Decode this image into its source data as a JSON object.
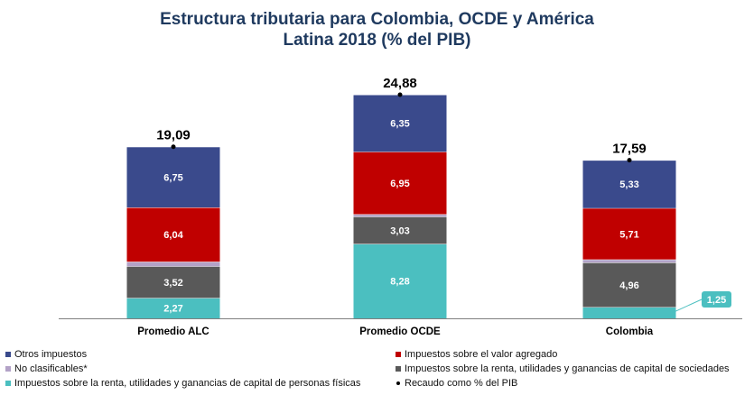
{
  "title_line1": "Estructura tributaria para Colombia, OCDE y América",
  "title_line2": "Latina 2018 (% del PIB)",
  "chart_data": {
    "type": "bar",
    "stacked": true,
    "categories": [
      "Promedio ALC",
      "Promedio OCDE",
      "Colombia"
    ],
    "series": [
      {
        "name": "Impuestos sobre la renta, utilidades y ganancias de capital de personas físicas",
        "color": "#4bbfc0",
        "values": [
          2.27,
          8.28,
          1.25
        ],
        "labels": [
          "2,27",
          "8,28",
          "1,25"
        ]
      },
      {
        "name": "Impuestos sobre la renta, utilidades y ganancias de capital de sociedades",
        "color": "#595959",
        "values": [
          3.52,
          3.03,
          4.96
        ],
        "labels": [
          "3,52",
          "3,03",
          "4,96"
        ]
      },
      {
        "name": "No clasificables*",
        "color": "#b3a2c7",
        "values": [
          0.51,
          0.27,
          0.34
        ],
        "labels": [
          "",
          "",
          ""
        ]
      },
      {
        "name": "Impuestos sobre el valor agregado",
        "color": "#c00000",
        "values": [
          6.04,
          6.95,
          5.71
        ],
        "labels": [
          "6,04",
          "6,95",
          "5,71"
        ]
      },
      {
        "name": "Otros impuestos",
        "color": "#3a4a8c",
        "values": [
          6.75,
          6.35,
          5.33
        ],
        "labels": [
          "6,75",
          "6,35",
          "5,33"
        ]
      }
    ],
    "totals": {
      "name": "Recaudo como % del PIB",
      "values": [
        19.09,
        24.88,
        17.59
      ],
      "labels": [
        "19,09",
        "24,88",
        "17,59"
      ]
    },
    "callout_color": "#4bbfc0"
  },
  "legend": [
    {
      "label": "Otros impuestos",
      "color": "#3a4a8c",
      "kind": "square"
    },
    {
      "label": "Impuestos sobre el valor agregado",
      "color": "#c00000",
      "kind": "square"
    },
    {
      "label": "No clasificables*",
      "color": "#b3a2c7",
      "kind": "square"
    },
    {
      "label": "Impuestos sobre la renta, utilidades y ganancias de capital de sociedades",
      "color": "#595959",
      "kind": "square"
    },
    {
      "label": "Impuestos sobre la renta, utilidades y ganancias de capital de personas físicas",
      "color": "#4bbfc0",
      "kind": "square"
    },
    {
      "label": "Recaudo como % del PIB",
      "color": "#000000",
      "kind": "dot"
    }
  ]
}
